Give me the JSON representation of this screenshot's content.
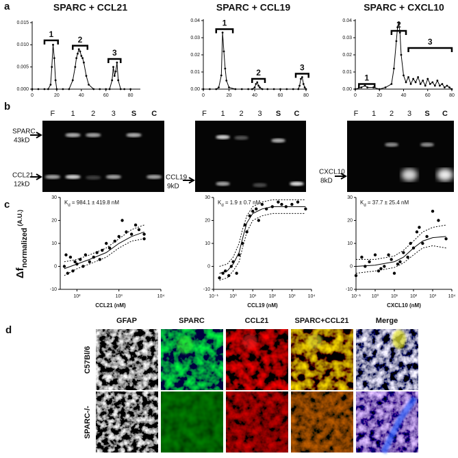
{
  "panel_labels": [
    "a",
    "b",
    "c",
    "d"
  ],
  "chart_data": [
    {
      "type": "line",
      "title": "SPARC + CCL21",
      "x": [
        0,
        5,
        10,
        13,
        15,
        16,
        17,
        18,
        19,
        20,
        25,
        30,
        33,
        35,
        36,
        37,
        38,
        39,
        40,
        41,
        42,
        44,
        46,
        50,
        55,
        60,
        63,
        65,
        66,
        67,
        68,
        69,
        70,
        72,
        75,
        80
      ],
      "values": [
        0,
        0,
        0,
        0,
        0.001,
        0.005,
        0.01,
        0.007,
        0.002,
        0,
        0,
        0,
        0.002,
        0.005,
        0.007,
        0.008,
        0.009,
        0.0085,
        0.0075,
        0.007,
        0.006,
        0.003,
        0.001,
        0,
        0,
        0,
        0,
        0.002,
        0.005,
        0.003,
        0.004,
        0.006,
        0.002,
        0,
        0,
        0
      ],
      "xlim": [
        0,
        88
      ],
      "ylim": [
        0,
        0.015
      ],
      "xticks": [
        0,
        20,
        40,
        60,
        80
      ],
      "yticks": [
        {
          "value": 0,
          "label": "0.000"
        },
        {
          "value": 0.005,
          "label": "0.005"
        },
        {
          "value": 0.01,
          "label": "0.010"
        },
        {
          "value": 0.015,
          "label": "0.015"
        }
      ],
      "annotations": [
        {
          "label": "1",
          "x": [
            10,
            21
          ],
          "y": 0.011
        },
        {
          "label": "2",
          "x": [
            33,
            45
          ],
          "y": 0.0098
        },
        {
          "label": "3",
          "x": [
            62,
            72
          ],
          "y": 0.0068
        }
      ]
    },
    {
      "type": "line",
      "title": "SPARC + CCL19",
      "x": [
        0,
        5,
        10,
        12,
        14,
        15,
        16,
        17,
        18,
        20,
        25,
        30,
        35,
        38,
        40,
        41,
        42,
        43,
        44,
        46,
        50,
        55,
        60,
        65,
        70,
        74,
        75,
        76,
        77,
        78,
        79,
        80
      ],
      "values": [
        0,
        0,
        0,
        0.001,
        0.008,
        0.033,
        0.022,
        0.012,
        0.005,
        0.001,
        0,
        0,
        0,
        0,
        0.001,
        0.003,
        0.004,
        0.002,
        0.001,
        0,
        0,
        0,
        0,
        0,
        0,
        0,
        0.002,
        0.006,
        0.007,
        0.003,
        0.001,
        0
      ],
      "xlim": [
        0,
        80
      ],
      "ylim": [
        0,
        0.04
      ],
      "xticks": [
        0,
        20,
        40,
        60,
        80
      ],
      "yticks": [
        {
          "value": 0,
          "label": "0.00"
        },
        {
          "value": 0.01,
          "label": "0.01"
        },
        {
          "value": 0.02,
          "label": "0.02"
        },
        {
          "value": 0.03,
          "label": "0.03"
        },
        {
          "value": 0.04,
          "label": "0.04"
        }
      ],
      "annotations": [
        {
          "label": "1",
          "x": [
            10,
            23
          ],
          "y": 0.035
        },
        {
          "label": "2",
          "x": [
            38,
            48
          ],
          "y": 0.006
        },
        {
          "label": "3",
          "x": [
            72,
            82
          ],
          "y": 0.009
        }
      ]
    },
    {
      "type": "line",
      "title": "SPARC + CXCL10",
      "x": [
        0,
        5,
        8,
        10,
        15,
        20,
        25,
        30,
        32,
        34,
        35,
        36,
        37,
        38,
        40,
        42,
        44,
        46,
        48,
        50,
        52,
        54,
        56,
        58,
        60,
        62,
        64,
        66,
        68,
        70,
        72,
        74,
        76,
        78,
        80
      ],
      "values": [
        0,
        0.001,
        0.002,
        0.001,
        0.001,
        0,
        0.001,
        0.003,
        0.012,
        0.028,
        0.036,
        0.039,
        0.033,
        0.02,
        0.008,
        0.004,
        0.007,
        0.003,
        0.006,
        0.004,
        0.007,
        0.003,
        0.005,
        0.002,
        0.006,
        0.003,
        0.004,
        0.002,
        0.005,
        0.002,
        0.003,
        0.001,
        0.002,
        0.001,
        0
      ],
      "xlim": [
        0,
        80
      ],
      "ylim": [
        0,
        0.04
      ],
      "xticks": [
        0,
        20,
        40,
        60,
        80
      ],
      "yticks": [
        {
          "value": 0,
          "label": "0.00"
        },
        {
          "value": 0.01,
          "label": "0.01"
        },
        {
          "value": 0.02,
          "label": "0.02"
        },
        {
          "value": 0.03,
          "label": "0.03"
        },
        {
          "value": 0.04,
          "label": "0.04"
        }
      ],
      "annotations": [
        {
          "label": "1",
          "x": [
            3,
            16
          ],
          "y": 0.003
        },
        {
          "label": "2",
          "x": [
            30,
            42
          ],
          "y": 0.034
        },
        {
          "label": "3",
          "x": [
            44,
            80
          ],
          "y": 0.024
        }
      ]
    },
    {
      "type": "scatter",
      "log_x": true,
      "x_axis_label": "CCL21 (nM)",
      "kd": {
        "symbol": "K",
        "subscript": "d",
        "text": " = 984.1 ± 419.8 nM"
      },
      "xlim": [
        40,
        10000
      ],
      "ylim": [
        -10,
        30
      ],
      "yticks": [
        -10,
        0,
        10,
        20,
        30
      ],
      "xticks": [
        {
          "value": 100,
          "label": "10²"
        },
        {
          "value": 1000,
          "label": "10³"
        },
        {
          "value": 10000,
          "label": "10⁴"
        }
      ],
      "points": {
        "x": [
          50,
          55,
          60,
          70,
          80,
          90,
          100,
          120,
          140,
          160,
          200,
          250,
          300,
          350,
          400,
          500,
          600,
          800,
          1000,
          1200,
          1500,
          2000,
          2500,
          3000,
          4000,
          4000
        ],
        "values": [
          0,
          5,
          -3,
          4,
          -2,
          2,
          1,
          3,
          0,
          5,
          2,
          4,
          6,
          3,
          7,
          10,
          8,
          11,
          13,
          20,
          15,
          14,
          18,
          16,
          14,
          12
        ]
      },
      "fit": {
        "x": [
          50,
          100,
          200,
          500,
          1000,
          2000,
          4000
        ],
        "values": [
          -1,
          1,
          3,
          6,
          10,
          13,
          15
        ]
      },
      "fit_upper": {
        "x": [
          50,
          100,
          200,
          500,
          1000,
          2000,
          4000
        ],
        "values": [
          2,
          3,
          5,
          8,
          12,
          16,
          18
        ]
      },
      "fit_lower": {
        "x": [
          50,
          100,
          200,
          500,
          1000,
          2000,
          4000
        ],
        "values": [
          -4,
          -1,
          1,
          4,
          8,
          11,
          12
        ]
      }
    },
    {
      "type": "scatter",
      "log_x": true,
      "x_axis_label": "CCL19 (nM)",
      "kd": {
        "symbol": "K",
        "subscript": "d",
        "text": " = 1.9 ± 0.7 nM"
      },
      "xlim": [
        0.1,
        10000
      ],
      "ylim": [
        -10,
        30
      ],
      "yticks": [
        -10,
        0,
        10,
        20,
        30
      ],
      "xticks": [
        {
          "value": 0.1,
          "label": "10⁻¹"
        },
        {
          "value": 1,
          "label": "10⁰"
        },
        {
          "value": 10,
          "label": "10¹"
        },
        {
          "value": 100,
          "label": "10²"
        },
        {
          "value": 1000,
          "label": "10³"
        },
        {
          "value": 10000,
          "label": "10⁴"
        }
      ],
      "points": {
        "x": [
          0.2,
          0.3,
          0.4,
          0.6,
          0.8,
          1,
          1.5,
          2,
          3,
          4,
          5,
          7,
          10,
          15,
          20,
          30,
          50,
          100,
          200,
          300,
          500,
          1000,
          2000,
          5000
        ],
        "values": [
          -5,
          -3,
          -2,
          -4,
          0,
          2,
          -3,
          5,
          10,
          18,
          15,
          22,
          24,
          25,
          20,
          27,
          25,
          26,
          28,
          27,
          26,
          27,
          28,
          25
        ]
      },
      "fit": {
        "x": [
          0.2,
          0.5,
          1,
          2,
          3,
          5,
          10,
          30,
          100,
          1000,
          5000
        ],
        "values": [
          -3,
          -2,
          1,
          6,
          12,
          19,
          23,
          25,
          26,
          26,
          26
        ]
      },
      "fit_upper": {
        "x": [
          0.2,
          0.5,
          1,
          2,
          3,
          5,
          10,
          30,
          100,
          1000,
          5000
        ],
        "values": [
          0,
          1,
          4,
          10,
          16,
          22,
          26,
          28,
          29,
          29,
          29
        ]
      },
      "fit_lower": {
        "x": [
          0.2,
          0.5,
          1,
          2,
          3,
          5,
          10,
          30,
          100,
          1000,
          5000
        ],
        "values": [
          -6,
          -5,
          -2,
          2,
          8,
          15,
          20,
          22,
          23,
          23,
          23
        ]
      }
    },
    {
      "type": "scatter",
      "log_x": true,
      "x_axis_label": "CXCL10 (nM)",
      "kd": {
        "symbol": "K",
        "subscript": "d",
        "text": " = 37.7 ± 25.4 nM"
      },
      "xlim": [
        0.1,
        10000
      ],
      "ylim": [
        -10,
        30
      ],
      "yticks": [
        -10,
        0,
        10,
        20,
        30
      ],
      "xticks": [
        {
          "value": 0.1,
          "label": "10⁻¹"
        },
        {
          "value": 1,
          "label": "10⁰"
        },
        {
          "value": 10,
          "label": "10¹"
        },
        {
          "value": 100,
          "label": "10²"
        },
        {
          "value": 1000,
          "label": "10³"
        },
        {
          "value": 10000,
          "label": "10⁴"
        }
      ],
      "points": {
        "x": [
          0.1,
          0.2,
          0.3,
          0.5,
          1,
          1.5,
          2,
          3,
          5,
          7,
          10,
          15,
          20,
          30,
          50,
          70,
          100,
          150,
          200,
          300,
          500,
          1000,
          2000,
          5000
        ],
        "values": [
          -4,
          4,
          0,
          2,
          5,
          -2,
          -1,
          0,
          5,
          3,
          -3,
          1,
          2,
          6,
          4,
          10,
          8,
          15,
          17,
          10,
          13,
          24,
          20,
          12
        ]
      },
      "fit": {
        "x": [
          0.1,
          1,
          10,
          30,
          100,
          300,
          1000,
          5000
        ],
        "values": [
          0,
          0.5,
          2,
          4,
          8,
          11,
          12.5,
          13
        ]
      },
      "fit_upper": {
        "x": [
          0.1,
          1,
          10,
          30,
          100,
          300,
          1000,
          5000
        ],
        "values": [
          3,
          3,
          4.5,
          7,
          11,
          15,
          17,
          18
        ]
      },
      "fit_lower": {
        "x": [
          0.1,
          1,
          10,
          30,
          100,
          300,
          1000,
          5000
        ],
        "values": [
          -3,
          -2,
          -0.5,
          1.5,
          5,
          8,
          9,
          8
        ]
      }
    }
  ],
  "binding_axis_label": {
    "symbol": "Δf",
    "subscript": "normalized",
    "unit": " (A.U.)"
  },
  "blots": [
    {
      "lanes": [
        "F",
        "1",
        "2",
        "3",
        "S",
        "C"
      ],
      "markers": [
        {
          "name": "SPARC",
          "size": "43kD"
        },
        {
          "name": "CCL21",
          "size": "12kD"
        }
      ]
    },
    {
      "lanes": [
        "F",
        "1",
        "2",
        "3",
        "S",
        "C"
      ],
      "markers": [
        {
          "name": "CCL19",
          "size": "9kD"
        }
      ]
    },
    {
      "lanes": [
        "F",
        "1",
        "2",
        "3",
        "S",
        "C"
      ],
      "markers": [
        {
          "name": "CXCL10",
          "size": "8kD"
        }
      ]
    }
  ],
  "micrographs": {
    "columns": [
      "GFAP",
      "SPARC",
      "CCL21",
      "SPARC+CCL21",
      "Merge"
    ],
    "rows": [
      "C57Bl/6",
      "SPARC-/-"
    ]
  }
}
